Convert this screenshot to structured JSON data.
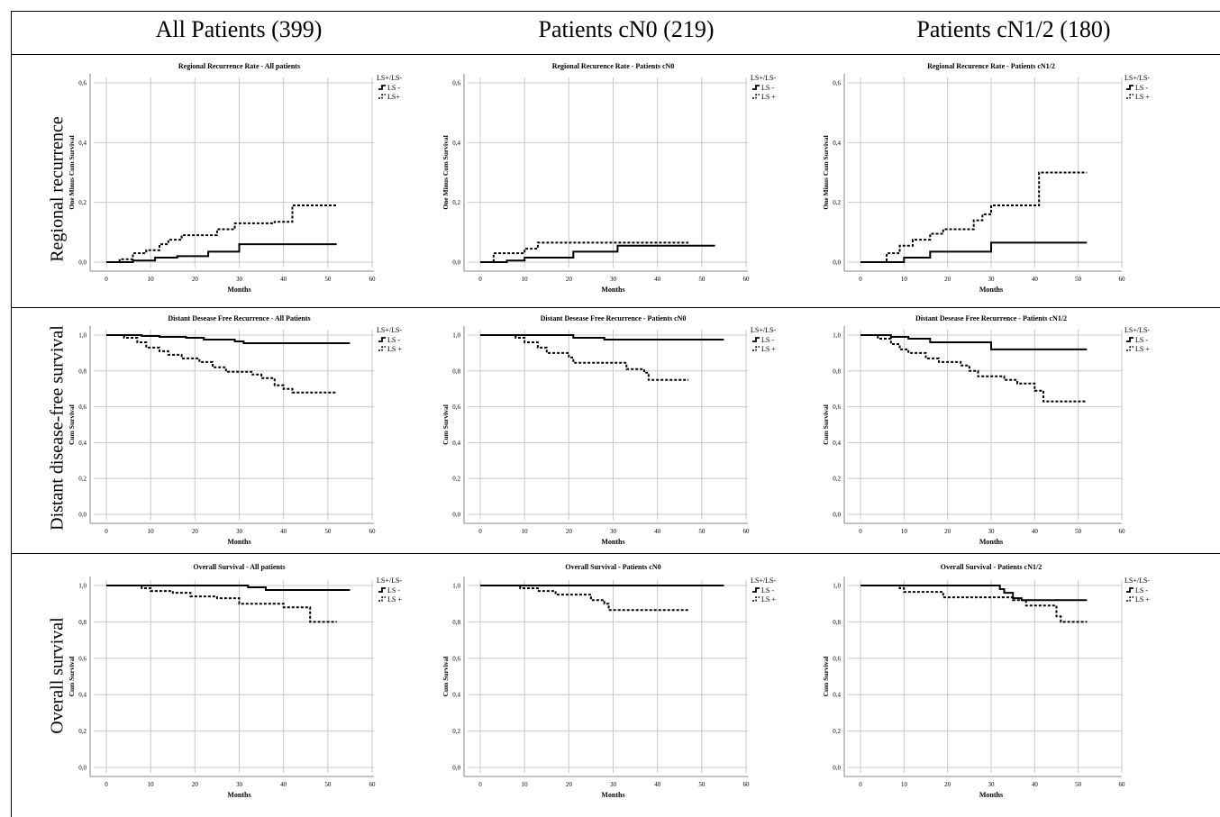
{
  "column_headers": [
    "All Patients (399)",
    "Patients cN0 (219)",
    "Patients cN1/2 (180)"
  ],
  "row_headers": [
    "Regional recurrence",
    "Distant disease-free survival",
    "Overall survival"
  ],
  "legend": {
    "title": "LS+/LS-",
    "entries": [
      "LS -",
      "LS +"
    ]
  },
  "colors": {
    "line": "#000000",
    "grid": "#c8c8c8",
    "frame": "#000000"
  },
  "chart_data": [
    {
      "type": "line",
      "step": true,
      "title": "Regional Recurrence Rate - All patients",
      "xlabel": "Months",
      "ylabel": "One Minus Cum Survival",
      "xlim": [
        0,
        60
      ],
      "ylim": [
        0,
        0.6
      ],
      "xticks": [
        0,
        10,
        20,
        30,
        40,
        50,
        60
      ],
      "yticks": [
        0,
        0.2,
        0.4,
        0.6
      ],
      "ytick_labels": [
        "0,0",
        "0,2",
        "0,4",
        "0,6"
      ],
      "legend_entries": [
        "LS -",
        "LS+"
      ],
      "series": [
        {
          "name": "LS -",
          "style": "solid",
          "points": [
            [
              0,
              0
            ],
            [
              6,
              0.005
            ],
            [
              11,
              0.015
            ],
            [
              16,
              0.02
            ],
            [
              23,
              0.035
            ],
            [
              30,
              0.06
            ],
            [
              52,
              0.06
            ]
          ]
        },
        {
          "name": "LS+",
          "style": "dashed",
          "points": [
            [
              0,
              0
            ],
            [
              3,
              0.01
            ],
            [
              6,
              0.03
            ],
            [
              9,
              0.04
            ],
            [
              12,
              0.06
            ],
            [
              14,
              0.075
            ],
            [
              17,
              0.09
            ],
            [
              25,
              0.11
            ],
            [
              29,
              0.13
            ],
            [
              38,
              0.135
            ],
            [
              42,
              0.19
            ],
            [
              52,
              0.19
            ]
          ]
        }
      ]
    },
    {
      "type": "line",
      "step": true,
      "title": "Regional Recurence Rate - Patients cN0",
      "xlabel": "Months",
      "ylabel": "One Minus Cum Survival",
      "xlim": [
        0,
        60
      ],
      "ylim": [
        0,
        0.6
      ],
      "xticks": [
        0,
        10,
        20,
        30,
        40,
        50,
        60
      ],
      "yticks": [
        0,
        0.2,
        0.4,
        0.6
      ],
      "ytick_labels": [
        "0,0",
        "0,2",
        "0,4",
        "0,6"
      ],
      "legend_entries": [
        "LS -",
        "LS +"
      ],
      "series": [
        {
          "name": "LS -",
          "style": "solid",
          "points": [
            [
              0,
              0
            ],
            [
              6,
              0.005
            ],
            [
              10,
              0.015
            ],
            [
              21,
              0.035
            ],
            [
              31,
              0.055
            ],
            [
              53,
              0.055
            ]
          ]
        },
        {
          "name": "LS +",
          "style": "dashed",
          "points": [
            [
              0,
              0
            ],
            [
              3,
              0.03
            ],
            [
              10,
              0.045
            ],
            [
              13,
              0.065
            ],
            [
              47,
              0.065
            ]
          ]
        }
      ]
    },
    {
      "type": "line",
      "step": true,
      "title": "Regional Recurence Rate - Patients cN1/2",
      "xlabel": "Months",
      "ylabel": "One Minus Cum Survival",
      "xlim": [
        0,
        60
      ],
      "ylim": [
        0,
        0.6
      ],
      "xticks": [
        0,
        10,
        20,
        30,
        40,
        50,
        60
      ],
      "yticks": [
        0,
        0.2,
        0.4,
        0.6
      ],
      "ytick_labels": [
        "0,0",
        "0,2",
        "0,4",
        "0,6"
      ],
      "legend_entries": [
        "LS -",
        "LS +"
      ],
      "series": [
        {
          "name": "LS -",
          "style": "solid",
          "points": [
            [
              0,
              0
            ],
            [
              10,
              0.015
            ],
            [
              16,
              0.035
            ],
            [
              30,
              0.065
            ],
            [
              52,
              0.065
            ]
          ]
        },
        {
          "name": "LS +",
          "style": "dashed",
          "points": [
            [
              0,
              0
            ],
            [
              6,
              0.03
            ],
            [
              9,
              0.055
            ],
            [
              12,
              0.075
            ],
            [
              16,
              0.095
            ],
            [
              19,
              0.11
            ],
            [
              26,
              0.14
            ],
            [
              28,
              0.16
            ],
            [
              30,
              0.19
            ],
            [
              41,
              0.3
            ],
            [
              52,
              0.3
            ]
          ]
        }
      ]
    },
    {
      "type": "line",
      "step": true,
      "title": "Distant Desease Free Recurrence - All Patients",
      "xlabel": "Months",
      "ylabel": "Cum Survival",
      "xlim": [
        0,
        60
      ],
      "ylim": [
        0,
        1.0
      ],
      "xticks": [
        0,
        10,
        20,
        30,
        40,
        50,
        60
      ],
      "yticks": [
        0,
        0.2,
        0.4,
        0.6,
        0.8,
        1.0
      ],
      "ytick_labels": [
        "0,0",
        "0,2",
        "0,4",
        "0,6",
        "0,8",
        "1,0"
      ],
      "legend_entries": [
        "LS -",
        "LS +"
      ],
      "series": [
        {
          "name": "LS -",
          "style": "solid",
          "points": [
            [
              0,
              1
            ],
            [
              8,
              0.995
            ],
            [
              12,
              0.99
            ],
            [
              18,
              0.985
            ],
            [
              22,
              0.975
            ],
            [
              29,
              0.965
            ],
            [
              31,
              0.955
            ],
            [
              55,
              0.955
            ]
          ]
        },
        {
          "name": "LS +",
          "style": "dashed",
          "points": [
            [
              0,
              1
            ],
            [
              4,
              0.985
            ],
            [
              7,
              0.96
            ],
            [
              9,
              0.93
            ],
            [
              12,
              0.91
            ],
            [
              14,
              0.89
            ],
            [
              17,
              0.87
            ],
            [
              21,
              0.85
            ],
            [
              24,
              0.82
            ],
            [
              27,
              0.795
            ],
            [
              33,
              0.78
            ],
            [
              35,
              0.76
            ],
            [
              38,
              0.72
            ],
            [
              40,
              0.7
            ],
            [
              42,
              0.68
            ],
            [
              52,
              0.68
            ]
          ]
        }
      ]
    },
    {
      "type": "line",
      "step": true,
      "title": "Distant Desease Free Recurrence - Patients cN0",
      "xlabel": "Months",
      "ylabel": "Cum Survival",
      "xlim": [
        0,
        60
      ],
      "ylim": [
        0,
        1.0
      ],
      "xticks": [
        0,
        10,
        20,
        30,
        40,
        50,
        60
      ],
      "yticks": [
        0,
        0.2,
        0.4,
        0.6,
        0.8,
        1.0
      ],
      "ytick_labels": [
        "0,0",
        "0,2",
        "0,4",
        "0,6",
        "0,8",
        "1,0"
      ],
      "legend_entries": [
        "LS -",
        "LS +"
      ],
      "series": [
        {
          "name": "LS -",
          "style": "solid",
          "points": [
            [
              0,
              1
            ],
            [
              21,
              0.985
            ],
            [
              28,
              0.975
            ],
            [
              55,
              0.975
            ]
          ]
        },
        {
          "name": "LS +",
          "style": "dashed",
          "points": [
            [
              0,
              1
            ],
            [
              8,
              0.985
            ],
            [
              10,
              0.96
            ],
            [
              13,
              0.93
            ],
            [
              15,
              0.9
            ],
            [
              20,
              0.875
            ],
            [
              21,
              0.845
            ],
            [
              33,
              0.81
            ],
            [
              37,
              0.79
            ],
            [
              38,
              0.75
            ],
            [
              47,
              0.75
            ]
          ]
        }
      ]
    },
    {
      "type": "line",
      "step": true,
      "title": "Distant Desease Free Recurrence - Patients cN1/2",
      "xlabel": "Months",
      "ylabel": "Cum Survival",
      "xlim": [
        0,
        60
      ],
      "ylim": [
        0,
        1.0
      ],
      "xticks": [
        0,
        10,
        20,
        30,
        40,
        50,
        60
      ],
      "yticks": [
        0,
        0.2,
        0.4,
        0.6,
        0.8,
        1.0
      ],
      "ytick_labels": [
        "0,0",
        "0,2",
        "0,4",
        "0,6",
        "0,8",
        "1,0"
      ],
      "legend_entries": [
        "LS -",
        "LS +"
      ],
      "series": [
        {
          "name": "LS -",
          "style": "solid",
          "points": [
            [
              0,
              1
            ],
            [
              7,
              0.99
            ],
            [
              11,
              0.98
            ],
            [
              16,
              0.96
            ],
            [
              30,
              0.92
            ],
            [
              52,
              0.92
            ]
          ]
        },
        {
          "name": "LS +",
          "style": "dashed",
          "points": [
            [
              0,
              1
            ],
            [
              4,
              0.98
            ],
            [
              7,
              0.95
            ],
            [
              9,
              0.92
            ],
            [
              11,
              0.9
            ],
            [
              15,
              0.87
            ],
            [
              18,
              0.85
            ],
            [
              23,
              0.83
            ],
            [
              25,
              0.8
            ],
            [
              27,
              0.77
            ],
            [
              33,
              0.75
            ],
            [
              36,
              0.73
            ],
            [
              40,
              0.69
            ],
            [
              42,
              0.63
            ],
            [
              52,
              0.63
            ]
          ]
        }
      ]
    },
    {
      "type": "line",
      "step": true,
      "title": "Overall Survival - All patients",
      "xlabel": "Months",
      "ylabel": "Cum Survival",
      "xlim": [
        0,
        60
      ],
      "ylim": [
        0,
        1.0
      ],
      "xticks": [
        0,
        10,
        20,
        30,
        40,
        50,
        60
      ],
      "yticks": [
        0,
        0.2,
        0.4,
        0.6,
        0.8,
        1.0
      ],
      "ytick_labels": [
        "0,0",
        "0,2",
        "0,4",
        "0,6",
        "0,8",
        "1,0"
      ],
      "legend_entries": [
        "LS -",
        "LS +"
      ],
      "series": [
        {
          "name": "LS -",
          "style": "solid",
          "points": [
            [
              0,
              1
            ],
            [
              32,
              0.99
            ],
            [
              36,
              0.975
            ],
            [
              55,
              0.975
            ]
          ]
        },
        {
          "name": "LS +",
          "style": "dashed",
          "points": [
            [
              0,
              1
            ],
            [
              8,
              0.985
            ],
            [
              10,
              0.97
            ],
            [
              15,
              0.96
            ],
            [
              19,
              0.94
            ],
            [
              25,
              0.93
            ],
            [
              30,
              0.9
            ],
            [
              40,
              0.88
            ],
            [
              46,
              0.8
            ],
            [
              52,
              0.8
            ]
          ]
        }
      ]
    },
    {
      "type": "line",
      "step": true,
      "title": "Overall Survival - Patients cN0",
      "xlabel": "Months",
      "ylabel": "Cum Survival",
      "xlim": [
        0,
        60
      ],
      "ylim": [
        0,
        1.0
      ],
      "xticks": [
        0,
        10,
        20,
        30,
        40,
        50,
        60
      ],
      "yticks": [
        0,
        0.2,
        0.4,
        0.6,
        0.8,
        1.0
      ],
      "ytick_labels": [
        "0,0",
        "0,2",
        "0,4",
        "0,6",
        "0,8",
        "1,0"
      ],
      "legend_entries": [
        "LS -",
        "LS +"
      ],
      "series": [
        {
          "name": "LS -",
          "style": "solid",
          "points": [
            [
              0,
              1
            ],
            [
              55,
              1
            ]
          ]
        },
        {
          "name": "LS +",
          "style": "dashed",
          "points": [
            [
              0,
              1
            ],
            [
              9,
              0.985
            ],
            [
              13,
              0.97
            ],
            [
              17,
              0.95
            ],
            [
              25,
              0.92
            ],
            [
              28,
              0.9
            ],
            [
              29,
              0.865
            ],
            [
              47,
              0.865
            ]
          ]
        }
      ]
    },
    {
      "type": "line",
      "step": true,
      "title": "Overall Survival - Patients cN1/2",
      "xlabel": "Months",
      "ylabel": "Cum Survival",
      "xlim": [
        0,
        60
      ],
      "ylim": [
        0,
        1.0
      ],
      "xticks": [
        0,
        10,
        20,
        30,
        40,
        50,
        60
      ],
      "yticks": [
        0,
        0.2,
        0.4,
        0.6,
        0.8,
        1.0
      ],
      "ytick_labels": [
        "0,0",
        "0,2",
        "0,4",
        "0,6",
        "0,8",
        "1,0"
      ],
      "legend_entries": [
        "LS -",
        "LS +"
      ],
      "series": [
        {
          "name": "LS -",
          "style": "solid",
          "points": [
            [
              0,
              1
            ],
            [
              32,
              0.98
            ],
            [
              33,
              0.96
            ],
            [
              35,
              0.93
            ],
            [
              37,
              0.92
            ],
            [
              52,
              0.92
            ]
          ]
        },
        {
          "name": "LS +",
          "style": "dashed",
          "points": [
            [
              0,
              1
            ],
            [
              9,
              0.985
            ],
            [
              10,
              0.965
            ],
            [
              19,
              0.935
            ],
            [
              35,
              0.92
            ],
            [
              38,
              0.89
            ],
            [
              45,
              0.83
            ],
            [
              46,
              0.8
            ],
            [
              52,
              0.8
            ]
          ]
        }
      ]
    }
  ]
}
